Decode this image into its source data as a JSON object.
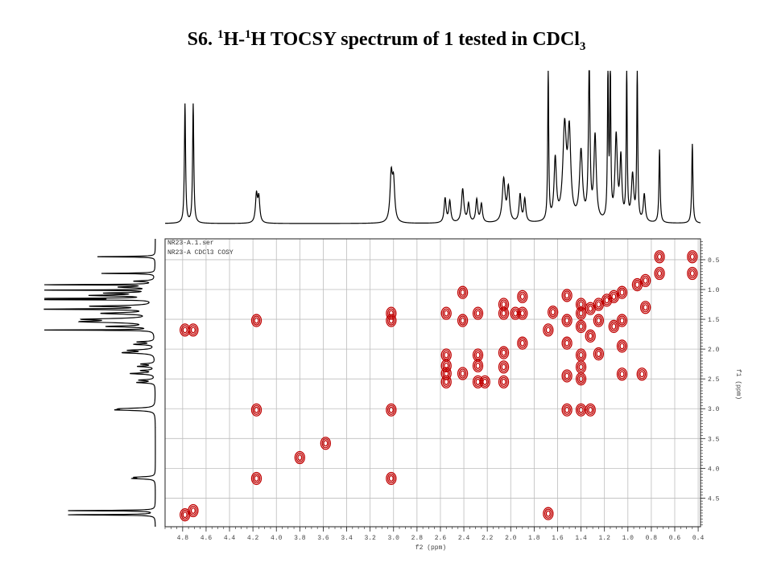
{
  "figure": {
    "title_prefix": "S6. ",
    "title_sup1": "1",
    "title_h1": "H-",
    "title_sup2": "1",
    "title_h2": "H TOCSY spectrum of 1 tested in CDCl",
    "title_sub": "3"
  },
  "chart_data": {
    "type": "scatter",
    "subtype": "2D NMR contour plot (TOCSY) with 1D projections",
    "xlabel": "f2 (ppm)",
    "ylabel": "f1 (ppm)",
    "xlim": [
      4.95,
      0.38
    ],
    "ylim": [
      0.15,
      4.98
    ],
    "x_reversed": true,
    "y_reversed": true,
    "grid": true,
    "contour_color": "#c00000",
    "projection_color": "#000000",
    "metadata_lines": [
      "NR23-A.1.ser",
      "NR23-A  CDCl3  COSY"
    ],
    "x_ticks": [
      "4.8",
      "4.6",
      "4.4",
      "4.2",
      "4.0",
      "3.8",
      "3.6",
      "3.4",
      "3.2",
      "3.0",
      "2.8",
      "2.6",
      "2.4",
      "2.2",
      "2.0",
      "1.8",
      "1.6",
      "1.4",
      "1.2",
      "1.0",
      "0.8",
      "0.6",
      "0.4"
    ],
    "y_ticks": [
      "0.5",
      "1.0",
      "1.5",
      "2.0",
      "2.5",
      "3.0",
      "3.5",
      "4.0",
      "4.5"
    ],
    "proton_peaks_ppm": [
      4.78,
      4.71,
      4.17,
      3.02,
      2.55,
      2.41,
      2.28,
      2.06,
      1.9,
      1.68,
      1.52,
      1.4,
      1.32,
      1.25,
      1.18,
      1.12,
      1.05,
      1.0,
      0.92,
      0.85,
      0.73,
      0.45
    ],
    "cross_peaks": [
      {
        "f2": 4.78,
        "f1": 4.78
      },
      {
        "f2": 4.71,
        "f1": 4.71
      },
      {
        "f2": 4.78,
        "f1": 1.68
      },
      {
        "f2": 4.71,
        "f1": 1.68
      },
      {
        "f2": 4.17,
        "f1": 4.17
      },
      {
        "f2": 4.17,
        "f1": 3.02
      },
      {
        "f2": 4.17,
        "f1": 1.52
      },
      {
        "f2": 3.02,
        "f1": 4.17
      },
      {
        "f2": 3.02,
        "f1": 3.02
      },
      {
        "f2": 3.02,
        "f1": 1.4
      },
      {
        "f2": 3.02,
        "f1": 1.52
      },
      {
        "f2": 3.8,
        "f1": 3.82
      },
      {
        "f2": 3.58,
        "f1": 3.58
      },
      {
        "f2": 2.55,
        "f1": 2.55
      },
      {
        "f2": 2.55,
        "f1": 2.41
      },
      {
        "f2": 2.55,
        "f1": 2.28
      },
      {
        "f2": 2.55,
        "f1": 2.1
      },
      {
        "f2": 2.55,
        "f1": 1.4
      },
      {
        "f2": 2.41,
        "f1": 2.41
      },
      {
        "f2": 2.41,
        "f1": 1.05
      },
      {
        "f2": 2.41,
        "f1": 1.52
      },
      {
        "f2": 2.28,
        "f1": 2.55
      },
      {
        "f2": 2.28,
        "f1": 2.28
      },
      {
        "f2": 2.28,
        "f1": 2.1
      },
      {
        "f2": 2.28,
        "f1": 1.4
      },
      {
        "f2": 2.22,
        "f1": 2.55
      },
      {
        "f2": 2.06,
        "f1": 2.06
      },
      {
        "f2": 2.06,
        "f1": 2.55
      },
      {
        "f2": 2.06,
        "f1": 2.3
      },
      {
        "f2": 2.06,
        "f1": 1.4
      },
      {
        "f2": 2.06,
        "f1": 1.25
      },
      {
        "f2": 1.96,
        "f1": 1.4
      },
      {
        "f2": 1.9,
        "f1": 1.9
      },
      {
        "f2": 1.9,
        "f1": 1.12
      },
      {
        "f2": 1.9,
        "f1": 1.4
      },
      {
        "f2": 1.68,
        "f1": 1.68
      },
      {
        "f2": 1.68,
        "f1": 4.76
      },
      {
        "f2": 1.64,
        "f1": 1.38
      },
      {
        "f2": 1.52,
        "f1": 1.52
      },
      {
        "f2": 1.52,
        "f1": 1.1
      },
      {
        "f2": 1.52,
        "f1": 1.9
      },
      {
        "f2": 1.52,
        "f1": 2.45
      },
      {
        "f2": 1.52,
        "f1": 3.02
      },
      {
        "f2": 1.4,
        "f1": 1.4
      },
      {
        "f2": 1.4,
        "f1": 1.25
      },
      {
        "f2": 1.4,
        "f1": 1.62
      },
      {
        "f2": 1.4,
        "f1": 2.1
      },
      {
        "f2": 1.4,
        "f1": 2.3
      },
      {
        "f2": 1.4,
        "f1": 2.5
      },
      {
        "f2": 1.4,
        "f1": 3.02
      },
      {
        "f2": 1.32,
        "f1": 1.32
      },
      {
        "f2": 1.32,
        "f1": 3.02
      },
      {
        "f2": 1.32,
        "f1": 1.78
      },
      {
        "f2": 1.25,
        "f1": 1.25
      },
      {
        "f2": 1.25,
        "f1": 1.52
      },
      {
        "f2": 1.25,
        "f1": 2.08
      },
      {
        "f2": 1.18,
        "f1": 1.18
      },
      {
        "f2": 1.12,
        "f1": 1.12
      },
      {
        "f2": 1.12,
        "f1": 1.62
      },
      {
        "f2": 1.05,
        "f1": 1.05
      },
      {
        "f2": 1.05,
        "f1": 1.52
      },
      {
        "f2": 1.05,
        "f1": 1.95
      },
      {
        "f2": 1.05,
        "f1": 2.42
      },
      {
        "f2": 0.92,
        "f1": 0.92
      },
      {
        "f2": 0.85,
        "f1": 0.85
      },
      {
        "f2": 0.88,
        "f1": 2.42
      },
      {
        "f2": 0.85,
        "f1": 1.3
      },
      {
        "f2": 0.73,
        "f1": 0.45
      },
      {
        "f2": 0.73,
        "f1": 0.73
      },
      {
        "f2": 0.45,
        "f1": 0.45
      },
      {
        "f2": 0.45,
        "f1": 0.73
      }
    ]
  }
}
